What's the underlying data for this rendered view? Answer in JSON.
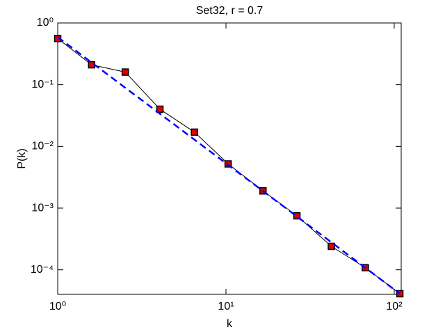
{
  "chart_data": {
    "type": "line",
    "title": "Set32, r = 0.7",
    "x_label": "k",
    "y_label": "P(k)",
    "x_log": true,
    "y_log": true,
    "xlim": [
      1,
      110
    ],
    "ylim": [
      4e-05,
      1
    ],
    "xticks": [
      {
        "value": 1,
        "label": "10⁰"
      },
      {
        "value": 10,
        "label": "10¹"
      },
      {
        "value": 100,
        "label": "10²"
      }
    ],
    "yticks": [
      {
        "value": 0.0001,
        "label": "10⁻⁴"
      },
      {
        "value": 0.001,
        "label": "10⁻³"
      },
      {
        "value": 0.01,
        "label": "10⁻²"
      },
      {
        "value": 0.1,
        "label": "10⁻¹"
      },
      {
        "value": 1,
        "label": "10⁰"
      }
    ],
    "series": [
      {
        "color": "#000000",
        "marker_color": "#dd0000",
        "style": "solid",
        "x": [
          1,
          1.59,
          2.52,
          4.05,
          6.5,
          10.3,
          16.6,
          26.4,
          42.3,
          67.3,
          108
        ],
        "values": [
          0.56,
          0.21,
          0.16,
          0.04,
          0.017,
          0.0052,
          0.0019,
          0.00075,
          0.00024,
          0.000108,
          4.1e-05
        ]
      },
      {
        "color": "#0000ff",
        "style": "dashed",
        "x": [
          1,
          108
        ],
        "values": [
          0.59,
          4.1e-05
        ]
      }
    ]
  }
}
